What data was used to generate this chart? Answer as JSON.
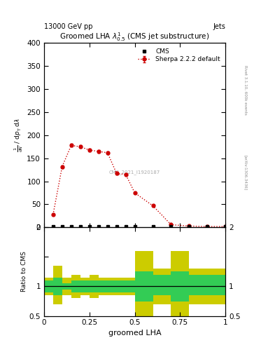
{
  "title": "Groomed LHA $\\lambda^{1}_{0.5}$ (CMS jet substructure)",
  "top_left_label": "13000 GeV pp",
  "top_right_label": "Jets",
  "right_label_main": "Rivet 3.1.10, 600k events",
  "right_label_sub": "[arXiv:1306.3436]",
  "cms_label": "CMS_2021_I1920187",
  "xlabel": "groomed LHA",
  "ylabel_ratio": "Ratio to CMS",
  "ylim_main": [
    0,
    400
  ],
  "ylim_ratio": [
    0.5,
    2.0
  ],
  "ratio_line": 1.0,
  "sherpa_x": [
    0.05,
    0.1,
    0.15,
    0.2,
    0.25,
    0.3,
    0.35,
    0.4,
    0.45,
    0.5,
    0.6,
    0.7,
    0.8,
    0.9,
    1.0
  ],
  "sherpa_y": [
    28,
    132,
    178,
    175,
    168,
    165,
    162,
    117,
    115,
    75,
    47,
    6,
    3,
    2,
    2
  ],
  "sherpa_yerr": [
    2,
    3,
    3,
    3,
    3,
    3,
    3,
    3,
    2,
    2,
    2,
    1,
    1,
    1,
    1
  ],
  "cms_x": [
    0.05,
    0.1,
    0.15,
    0.2,
    0.25,
    0.3,
    0.35,
    0.4,
    0.45,
    0.5,
    0.6,
    0.7,
    0.8,
    0.9,
    1.0
  ],
  "cms_y": [
    2,
    2,
    2,
    2,
    2,
    2,
    2,
    2,
    2,
    2,
    2,
    2,
    2,
    2,
    2
  ],
  "ratio_bins": [
    0.0,
    0.05,
    0.1,
    0.15,
    0.2,
    0.25,
    0.3,
    0.35,
    0.4,
    0.45,
    0.5,
    0.6,
    0.7,
    0.8,
    0.9,
    1.0
  ],
  "ratio_green_lo": [
    0.9,
    0.85,
    0.95,
    0.9,
    0.9,
    0.9,
    0.9,
    0.9,
    0.9,
    0.9,
    0.75,
    0.85,
    0.75,
    0.85,
    0.85
  ],
  "ratio_green_hi": [
    1.1,
    1.15,
    1.05,
    1.1,
    1.1,
    1.1,
    1.1,
    1.1,
    1.1,
    1.1,
    1.25,
    1.2,
    1.25,
    1.2,
    1.2
  ],
  "ratio_yellow_lo": [
    0.85,
    0.7,
    0.85,
    0.8,
    0.85,
    0.8,
    0.85,
    0.85,
    0.85,
    0.85,
    0.5,
    0.7,
    0.5,
    0.7,
    0.7
  ],
  "ratio_yellow_hi": [
    1.15,
    1.35,
    1.15,
    1.2,
    1.15,
    1.2,
    1.15,
    1.15,
    1.15,
    1.15,
    1.6,
    1.3,
    1.6,
    1.3,
    1.3
  ],
  "sherpa_color": "#cc0000",
  "cms_color": "#000000",
  "green_color": "#33cc55",
  "yellow_color": "#cccc00",
  "background_color": "#ffffff"
}
